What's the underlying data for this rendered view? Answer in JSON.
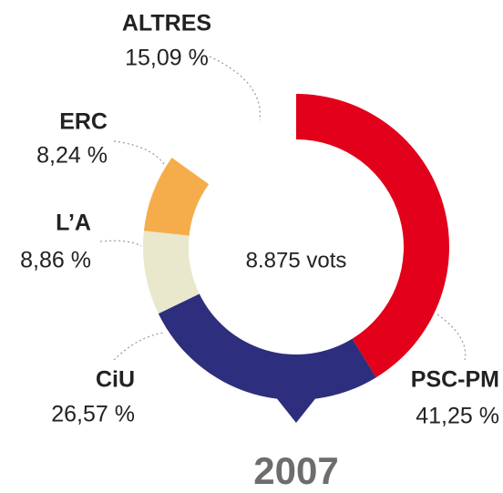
{
  "chart_data": {
    "type": "donut",
    "center_label": "8.875 vots",
    "year": "2007",
    "categories": [
      "PSC-PM",
      "CiU",
      "L’A",
      "ERC",
      "ALTRES"
    ],
    "values": [
      41.25,
      26.57,
      8.86,
      8.24,
      15.09
    ],
    "value_labels": [
      "41,25 %",
      "26,57 %",
      "8,86 %",
      "8,24 %",
      "15,09 %"
    ],
    "colors": [
      "#e2001a",
      "#2e2e7e",
      "#e9e8cd",
      "#f5ad4c",
      "none"
    ]
  }
}
